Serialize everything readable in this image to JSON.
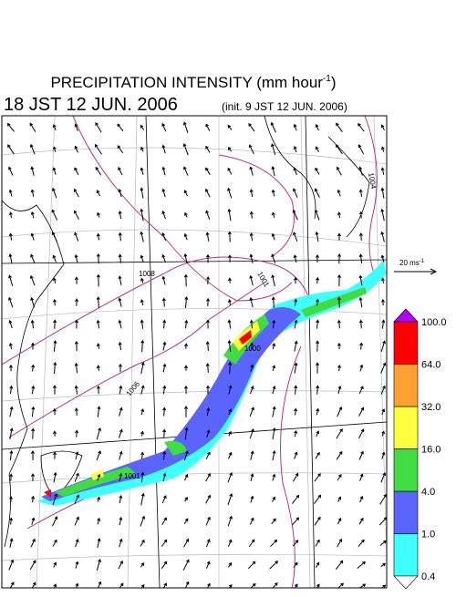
{
  "header": {
    "title": "PRECIPITATION INTENSITY (mm hour",
    "title_exponent": "-1",
    "title_close": ")",
    "valid_time": "18 JST 12 JUN. 2006",
    "init_time": "(init. 9 JST 12 JUN. 2006)"
  },
  "wind_scale": {
    "label": "20 ms",
    "exponent": "-1"
  },
  "contour_labels": [
    "1004",
    "1008",
    "1001",
    "1000",
    "1006",
    "1001"
  ],
  "colorbar": {
    "levels": [
      {
        "value": 0.4,
        "label": "0.4"
      },
      {
        "value": 1,
        "label": "1.0"
      },
      {
        "value": 4,
        "label": "4.0"
      },
      {
        "value": 16,
        "label": "16.0"
      },
      {
        "value": 32,
        "label": "32.0"
      },
      {
        "value": 64,
        "label": "64.0"
      },
      {
        "value": 100,
        "label": "100.0"
      }
    ],
    "colors": [
      "#40ffff",
      "#5a64ff",
      "#40dc40",
      "#ffff40",
      "#ffa030",
      "#ff0000"
    ],
    "over_color": "#b400ff",
    "under_color": "#ffffff"
  }
}
